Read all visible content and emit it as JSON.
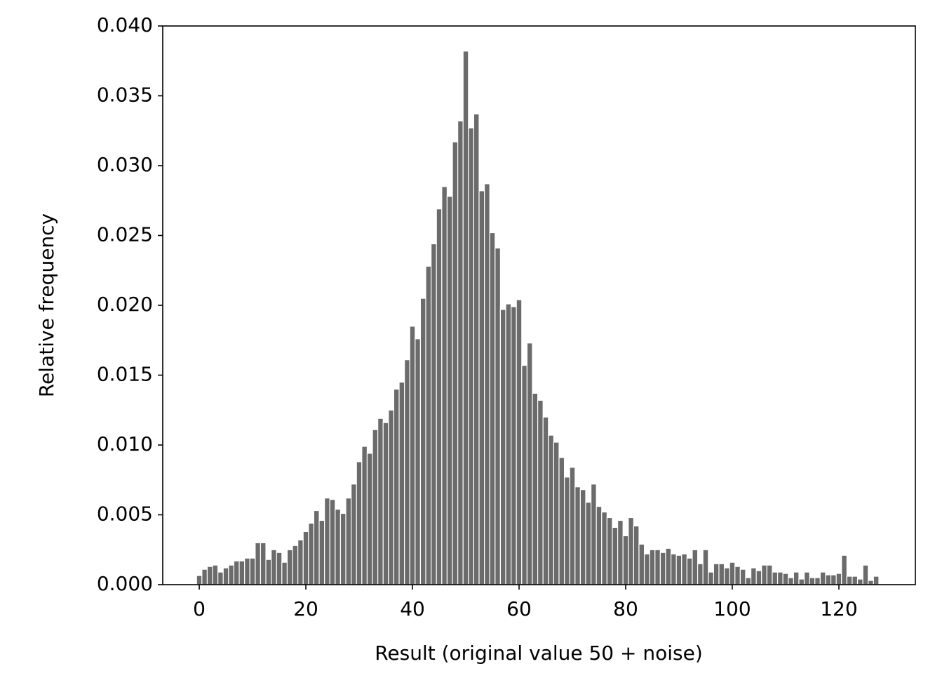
{
  "chart_data": {
    "type": "histogram",
    "xlabel": "Result (original value 50 + noise)",
    "ylabel": "Relative frequency",
    "color": "#6b6b6b",
    "bins": [
      -0.5,
      0.5,
      1.5,
      2.5,
      3.5,
      4.5,
      5.5,
      6.5,
      7.5,
      8.5,
      9.5,
      10.5,
      11.5,
      12.5,
      13.5,
      14.5,
      15.5,
      16.5,
      17.5,
      18.5,
      19.5,
      20.5,
      21.5,
      22.5,
      23.5,
      24.5,
      25.5,
      26.5,
      27.5,
      28.5,
      29.5,
      30.5,
      31.5,
      32.5,
      33.5,
      34.5,
      35.5,
      36.5,
      37.5,
      38.5,
      39.5,
      40.5,
      41.5,
      42.5,
      43.5,
      44.5,
      45.5,
      46.5,
      47.5,
      48.5,
      49.5,
      50.5,
      51.5,
      52.5,
      53.5,
      54.5,
      55.5,
      56.5,
      57.5,
      58.5,
      59.5,
      60.5,
      61.5,
      62.5,
      63.5,
      64.5,
      65.5,
      66.5,
      67.5,
      68.5,
      69.5,
      70.5,
      71.5,
      72.5,
      73.5,
      74.5,
      75.5,
      76.5,
      77.5,
      78.5,
      79.5,
      80.5,
      81.5,
      82.5,
      83.5,
      84.5,
      85.5,
      86.5,
      87.5,
      88.5,
      89.5,
      90.5,
      91.5,
      92.5,
      93.5,
      94.5,
      95.5,
      96.5,
      97.5,
      98.5,
      99.5,
      100.5,
      101.5,
      102.5,
      103.5,
      104.5,
      105.5,
      106.5,
      107.5,
      108.5,
      109.5,
      110.5,
      111.5,
      112.5,
      113.5,
      114.5,
      115.5,
      116.5,
      117.5,
      118.5,
      119.5,
      120.5,
      121.5,
      122.5,
      123.5,
      124.5,
      125.5,
      126.5,
      127.5
    ],
    "values": [
      0.00065,
      0.0011,
      0.0013,
      0.0014,
      0.0009,
      0.0012,
      0.0014,
      0.0017,
      0.0017,
      0.0019,
      0.0019,
      0.003,
      0.003,
      0.0018,
      0.0025,
      0.0023,
      0.0016,
      0.0025,
      0.0028,
      0.0032,
      0.0038,
      0.0044,
      0.0053,
      0.0046,
      0.0062,
      0.0061,
      0.0054,
      0.0051,
      0.0062,
      0.0072,
      0.0088,
      0.0099,
      0.0094,
      0.0111,
      0.0119,
      0.0116,
      0.0125,
      0.014,
      0.0145,
      0.0161,
      0.0185,
      0.0176,
      0.0205,
      0.0228,
      0.0244,
      0.0269,
      0.0285,
      0.0278,
      0.0317,
      0.0332,
      0.0382,
      0.0327,
      0.0337,
      0.0282,
      0.0287,
      0.0252,
      0.0241,
      0.0197,
      0.0201,
      0.0199,
      0.0204,
      0.0157,
      0.0173,
      0.0137,
      0.0132,
      0.012,
      0.0107,
      0.0102,
      0.0091,
      0.0077,
      0.0084,
      0.007,
      0.0068,
      0.0059,
      0.0072,
      0.0056,
      0.0052,
      0.0048,
      0.0041,
      0.0046,
      0.0035,
      0.0048,
      0.0042,
      0.0029,
      0.0022,
      0.0025,
      0.0025,
      0.0023,
      0.0026,
      0.0022,
      0.0021,
      0.0022,
      0.0019,
      0.0025,
      0.0015,
      0.0025,
      0.0009,
      0.0015,
      0.0015,
      0.0012,
      0.0016,
      0.0013,
      0.0011,
      0.0005,
      0.0012,
      0.001,
      0.0014,
      0.0014,
      0.0009,
      0.0009,
      0.0008,
      0.0005,
      0.0009,
      0.0004,
      0.0009,
      0.0005,
      0.0005,
      0.0009,
      0.0007,
      0.0007,
      0.0008,
      0.0021,
      0.0006,
      0.0006,
      0.0004,
      0.0014,
      0.0003,
      0.0006
    ],
    "xlim": [
      -6.85,
      134.35
    ],
    "ylim": [
      0,
      0.04
    ],
    "xticks": [
      0,
      20,
      40,
      60,
      80,
      100,
      120
    ],
    "yticks": [
      {
        "value": 0,
        "label": "0.000"
      },
      {
        "value": 0.005,
        "label": "0.005"
      },
      {
        "value": 0.01,
        "label": "0.010"
      },
      {
        "value": 0.015,
        "label": "0.015"
      },
      {
        "value": 0.02,
        "label": "0.020"
      },
      {
        "value": 0.025,
        "label": "0.025"
      },
      {
        "value": 0.03,
        "label": "0.030"
      },
      {
        "value": 0.035,
        "label": "0.035"
      },
      {
        "value": 0.04,
        "label": "0.040"
      }
    ]
  }
}
